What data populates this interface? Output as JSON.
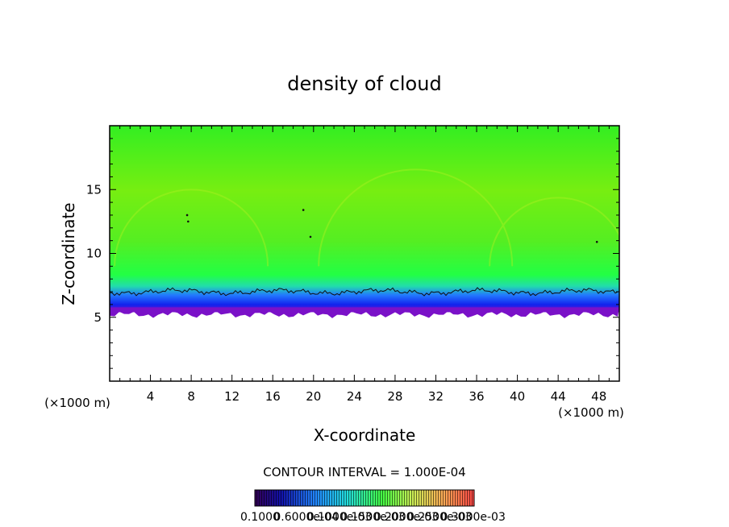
{
  "chart_data": {
    "type": "heatmap",
    "title": "density of cloud",
    "xlabel": "X-coordinate",
    "ylabel": "Z-coordinate",
    "x_unit_left": "(×1000 m)",
    "x_unit_right": "(×1000 m)",
    "xlim": [
      0,
      50
    ],
    "ylim": [
      0,
      20
    ],
    "x_ticks": [
      4,
      8,
      12,
      16,
      20,
      24,
      28,
      32,
      36,
      40,
      44,
      48
    ],
    "y_ticks": [
      5,
      10,
      15
    ],
    "contour_interval_label": "CONTOUR INTERVAL = 1.000E-04",
    "colorbar_labels": [
      "0.1000",
      "0.6000e-04",
      "0.1000e-03",
      "0.1500e-03",
      "0.2000e-03",
      "0.2500e-03",
      "0.3000e-03"
    ],
    "cloud_base_z": 5.4,
    "cloud_contour_z": 7.0,
    "cloud_top_z": 20,
    "colors": {
      "upper": "#66ee11",
      "mid": "#44ff22",
      "cyan": "#22ddbb",
      "blue": "#1133ff",
      "purple": "#8811cc"
    }
  }
}
